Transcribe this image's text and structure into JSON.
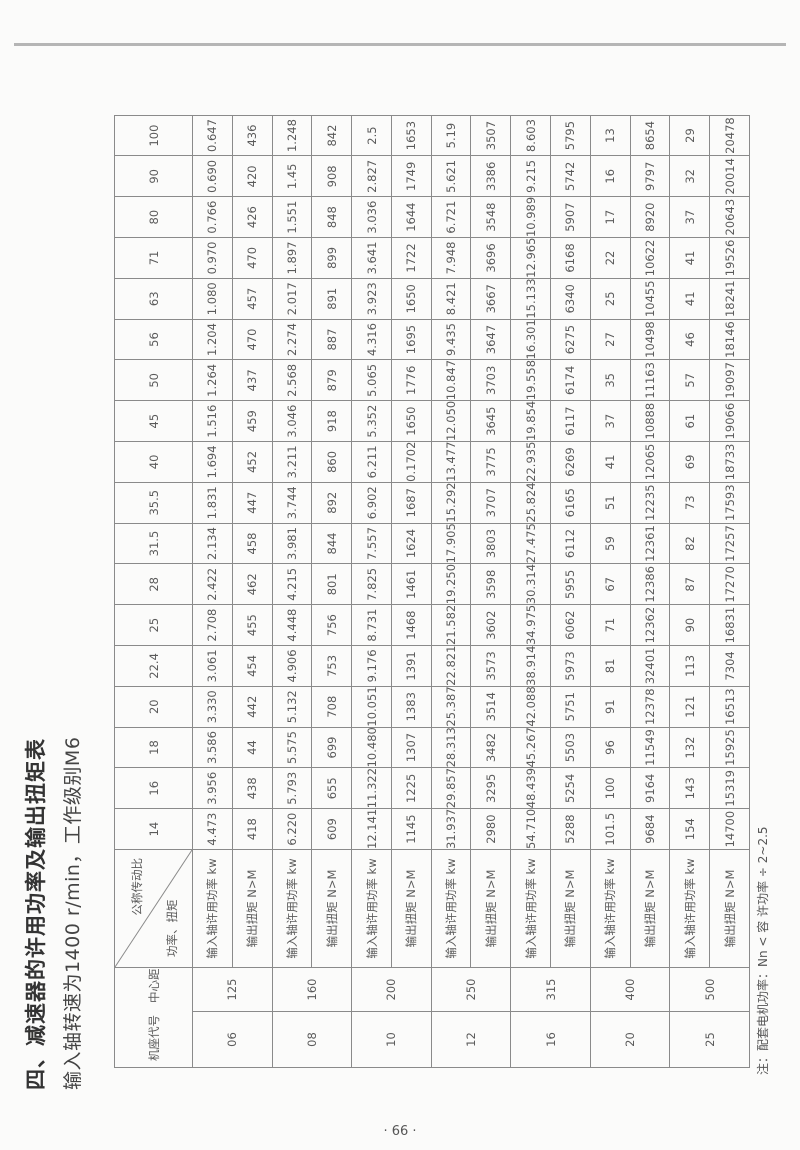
{
  "title": "四、减速器的许用功率及输出扭矩表",
  "subtitle": "输入轴转速为1400 r/min，工作级别M6",
  "table": {
    "header_frame": "机座代号",
    "header_center": "中心距",
    "header_ratio": "公称传动比",
    "header_power_torque": "功率、扭矩",
    "power_label": "输入轴许用功率 kw",
    "torque_label": "输出扭矩 N>M",
    "ratios": [
      "14",
      "16",
      "18",
      "20",
      "22.4",
      "25",
      "28",
      "31.5",
      "35.5",
      "40",
      "45",
      "50",
      "56",
      "63",
      "71",
      "80",
      "90",
      "100"
    ],
    "groups": [
      {
        "frame": "06",
        "center": "125",
        "power": [
          "4.473",
          "3.956",
          "3.586",
          "3.330",
          "3.061",
          "2.708",
          "2.422",
          "2.134",
          "1.831",
          "1.694",
          "1.516",
          "1.264",
          "1.204",
          "1.080",
          "0.970",
          "0.766",
          "0.690",
          "0.647"
        ],
        "torque": [
          "418",
          "438",
          "44",
          "442",
          "454",
          "455",
          "462",
          "458",
          "447",
          "452",
          "459",
          "437",
          "470",
          "457",
          "470",
          "426",
          "420",
          "436"
        ]
      },
      {
        "frame": "08",
        "center": "160",
        "power": [
          "6.220",
          "5.793",
          "5.575",
          "5.132",
          "4.906",
          "4.448",
          "4.215",
          "3.981",
          "3.744",
          "3.211",
          "3.046",
          "2.568",
          "2.274",
          "2.017",
          "1.897",
          "1.551",
          "1.45",
          "1.248"
        ],
        "torque": [
          "609",
          "655",
          "699",
          "708",
          "753",
          "756",
          "801",
          "844",
          "892",
          "860",
          "918",
          "879",
          "887",
          "891",
          "899",
          "848",
          "908",
          "842"
        ]
      },
      {
        "frame": "10",
        "center": "200",
        "power": [
          "12.141",
          "11.322",
          "10.480",
          "10.051",
          "9.176",
          "8.731",
          "7.825",
          "7.557",
          "6.902",
          "6.211",
          "5.352",
          "5.065",
          "4.316",
          "3.923",
          "3.641",
          "3.036",
          "2.827",
          "2.5"
        ],
        "torque": [
          "1145",
          "1225",
          "1307",
          "1383",
          "1391",
          "1468",
          "1461",
          "1624",
          "1687",
          "0.1702",
          "1650",
          "1776",
          "1695",
          "1650",
          "1722",
          "1644",
          "1749",
          "1653"
        ]
      },
      {
        "frame": "12",
        "center": "250",
        "power": [
          "31.937",
          "29.857",
          "28.313",
          "25.387",
          "22.821",
          "21.582",
          "19.250",
          "17.905",
          "15.292",
          "13.477",
          "12.050",
          "10.847",
          "9.435",
          "8.421",
          "7.948",
          "6.721",
          "5.621",
          "5.19"
        ],
        "torque": [
          "2980",
          "3295",
          "3482",
          "3514",
          "3573",
          "3602",
          "3598",
          "3803",
          "3707",
          "3775",
          "3645",
          "3703",
          "3647",
          "3667",
          "3696",
          "3548",
          "3386",
          "3507"
        ]
      },
      {
        "frame": "16",
        "center": "315",
        "power": [
          "54.710",
          "48.439",
          "45.267",
          "42.088",
          "38.914",
          "34.975",
          "30.314",
          "27.475",
          "25.824",
          "22.935",
          "19.854",
          "19.558",
          "16.301",
          "15.133",
          "12.965",
          "10.989",
          "9.215",
          "8.603"
        ],
        "torque": [
          "5288",
          "5254",
          "5503",
          "5751",
          "5973",
          "6062",
          "5955",
          "6112",
          "6165",
          "6269",
          "6117",
          "6174",
          "6275",
          "6340",
          "6168",
          "5907",
          "5742",
          "5795"
        ]
      },
      {
        "frame": "20",
        "center": "400",
        "power": [
          "101.5",
          "100",
          "96",
          "91",
          "81",
          "71",
          "67",
          "59",
          "51",
          "41",
          "37",
          "35",
          "27",
          "25",
          "22",
          "17",
          "16",
          "13"
        ],
        "torque": [
          "9684",
          "9164",
          "11549",
          "12378",
          "32401",
          "12362",
          "12386",
          "12361",
          "12235",
          "12065",
          "10888",
          "11163",
          "10498",
          "10455",
          "10622",
          "8920",
          "9797",
          "8654"
        ]
      },
      {
        "frame": "25",
        "center": "500",
        "power": [
          "154",
          "143",
          "132",
          "121",
          "113",
          "90",
          "87",
          "82",
          "73",
          "69",
          "61",
          "57",
          "46",
          "41",
          "41",
          "37",
          "32",
          "29"
        ],
        "torque": [
          "14700",
          "15319",
          "15925",
          "16513",
          "7304",
          "16831",
          "17270",
          "17257",
          "17593",
          "18733",
          "19066",
          "19097",
          "18146",
          "18241",
          "19526",
          "20643",
          "20014",
          "20478"
        ]
      }
    ]
  },
  "note": "注：配套电机功率：Nn < 容 许功率 ÷ 2~2.5",
  "page_number": "· 66 ·"
}
